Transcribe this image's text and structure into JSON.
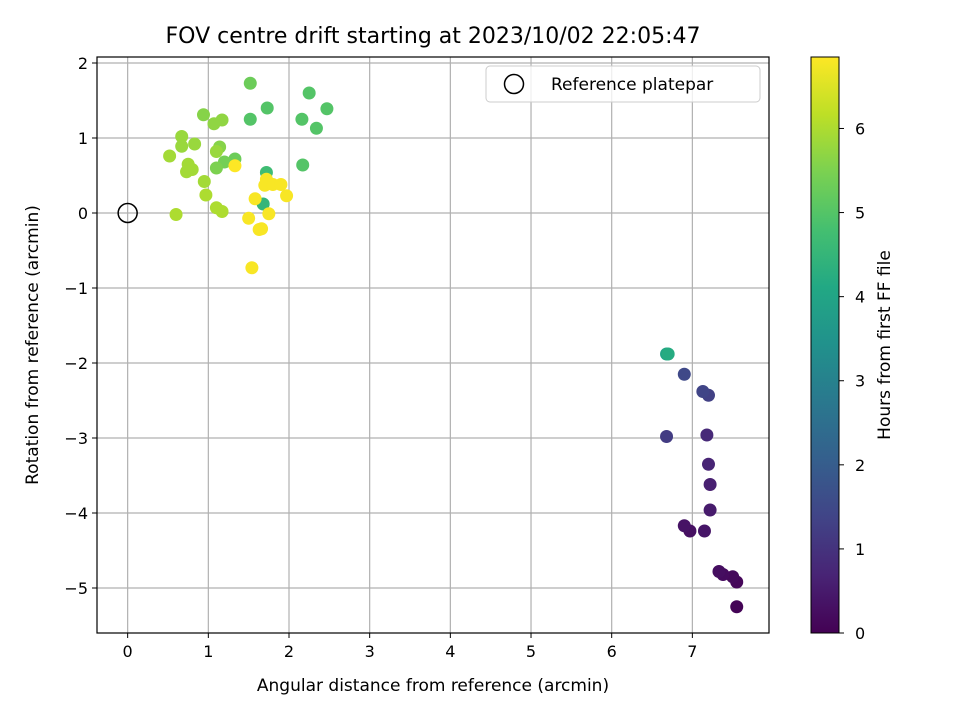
{
  "chart_data": {
    "type": "scatter",
    "title": "FOV centre drift starting at 2023/10/02 22:05:47",
    "xlabel": "Angular distance from reference (arcmin)",
    "ylabel": "Rotation from reference (arcmin)",
    "xlim": [
      -0.38,
      7.95
    ],
    "ylim": [
      -5.6,
      2.08
    ],
    "xticks": [
      0,
      1,
      2,
      3,
      4,
      5,
      6,
      7
    ],
    "yticks": [
      2,
      1,
      0,
      -1,
      -2,
      -3,
      -4,
      -5
    ],
    "xtick_labels": [
      "0",
      "1",
      "2",
      "3",
      "4",
      "5",
      "6",
      "7"
    ],
    "ytick_labels": [
      "2",
      "1",
      "0",
      "−1",
      "−2",
      "−3",
      "−4",
      "−5"
    ],
    "grid": true,
    "legend": {
      "position": "top-right",
      "entries": [
        "Reference platepar"
      ]
    },
    "reference_point": {
      "x": 0,
      "y": 0
    },
    "colorbar": {
      "label": "Hours from first FF file",
      "range": [
        0,
        6.85
      ],
      "ticks": [
        0,
        1,
        2,
        3,
        4,
        5,
        6
      ],
      "tick_labels": [
        "0",
        "1",
        "2",
        "3",
        "4",
        "5",
        "6"
      ],
      "colormap": "viridis"
    },
    "points": [
      {
        "x": 7.55,
        "y": -5.25,
        "c": 0.05
      },
      {
        "x": 7.55,
        "y": -4.92,
        "c": 0.1
      },
      {
        "x": 7.5,
        "y": -4.85,
        "c": 0.15
      },
      {
        "x": 7.38,
        "y": -4.82,
        "c": 0.2
      },
      {
        "x": 7.33,
        "y": -4.78,
        "c": 0.25
      },
      {
        "x": 6.97,
        "y": -4.24,
        "c": 0.3
      },
      {
        "x": 6.9,
        "y": -4.17,
        "c": 0.35
      },
      {
        "x": 7.15,
        "y": -4.24,
        "c": 0.4
      },
      {
        "x": 7.22,
        "y": -3.96,
        "c": 0.5
      },
      {
        "x": 7.22,
        "y": -3.62,
        "c": 0.6
      },
      {
        "x": 7.2,
        "y": -3.35,
        "c": 0.7
      },
      {
        "x": 7.18,
        "y": -2.96,
        "c": 0.8
      },
      {
        "x": 6.68,
        "y": -2.98,
        "c": 1.2
      },
      {
        "x": 7.2,
        "y": -2.43,
        "c": 1.3
      },
      {
        "x": 7.13,
        "y": -2.38,
        "c": 1.4
      },
      {
        "x": 6.9,
        "y": -2.15,
        "c": 1.5
      },
      {
        "x": 6.68,
        "y": -1.88,
        "c": 4.0
      },
      {
        "x": 6.7,
        "y": -1.88,
        "c": 4.2
      },
      {
        "x": 1.68,
        "y": 0.12,
        "c": 4.5
      },
      {
        "x": 1.72,
        "y": 0.54,
        "c": 4.7
      },
      {
        "x": 1.52,
        "y": 1.25,
        "c": 5.0
      },
      {
        "x": 1.73,
        "y": 1.4,
        "c": 5.0
      },
      {
        "x": 2.25,
        "y": 1.6,
        "c": 5.0
      },
      {
        "x": 2.47,
        "y": 1.39,
        "c": 5.0
      },
      {
        "x": 2.16,
        "y": 1.25,
        "c": 5.0
      },
      {
        "x": 2.34,
        "y": 1.13,
        "c": 5.0
      },
      {
        "x": 2.17,
        "y": 0.64,
        "c": 5.0
      },
      {
        "x": 1.52,
        "y": 1.73,
        "c": 5.3
      },
      {
        "x": 1.33,
        "y": 0.72,
        "c": 5.3
      },
      {
        "x": 1.2,
        "y": 0.68,
        "c": 5.4
      },
      {
        "x": 1.1,
        "y": 0.6,
        "c": 5.5
      },
      {
        "x": 1.14,
        "y": 0.88,
        "c": 5.6
      },
      {
        "x": 0.94,
        "y": 1.31,
        "c": 5.6
      },
      {
        "x": 1.07,
        "y": 1.19,
        "c": 5.7
      },
      {
        "x": 1.17,
        "y": 1.24,
        "c": 5.7
      },
      {
        "x": 1.1,
        "y": 0.82,
        "c": 5.8
      },
      {
        "x": 0.67,
        "y": 1.02,
        "c": 5.8
      },
      {
        "x": 0.67,
        "y": 0.89,
        "c": 5.8
      },
      {
        "x": 0.83,
        "y": 0.92,
        "c": 5.8
      },
      {
        "x": 0.52,
        "y": 0.76,
        "c": 5.9
      },
      {
        "x": 0.75,
        "y": 0.65,
        "c": 5.9
      },
      {
        "x": 0.8,
        "y": 0.58,
        "c": 5.9
      },
      {
        "x": 0.73,
        "y": 0.55,
        "c": 5.9
      },
      {
        "x": 0.95,
        "y": 0.42,
        "c": 5.9
      },
      {
        "x": 0.97,
        "y": 0.24,
        "c": 6.0
      },
      {
        "x": 1.1,
        "y": 0.07,
        "c": 6.0
      },
      {
        "x": 1.17,
        "y": 0.02,
        "c": 6.0
      },
      {
        "x": 0.6,
        "y": -0.02,
        "c": 6.0
      },
      {
        "x": 1.33,
        "y": 0.63,
        "c": 6.85
      },
      {
        "x": 1.72,
        "y": 0.45,
        "c": 6.8
      },
      {
        "x": 1.7,
        "y": 0.37,
        "c": 6.8
      },
      {
        "x": 1.8,
        "y": 0.38,
        "c": 6.8
      },
      {
        "x": 1.9,
        "y": 0.38,
        "c": 6.8
      },
      {
        "x": 1.97,
        "y": 0.23,
        "c": 6.8
      },
      {
        "x": 1.58,
        "y": 0.19,
        "c": 6.8
      },
      {
        "x": 1.75,
        "y": -0.01,
        "c": 6.8
      },
      {
        "x": 1.5,
        "y": -0.07,
        "c": 6.8
      },
      {
        "x": 1.63,
        "y": -0.22,
        "c": 6.8
      },
      {
        "x": 1.66,
        "y": -0.21,
        "c": 6.8
      },
      {
        "x": 1.54,
        "y": -0.73,
        "c": 6.8
      }
    ]
  }
}
